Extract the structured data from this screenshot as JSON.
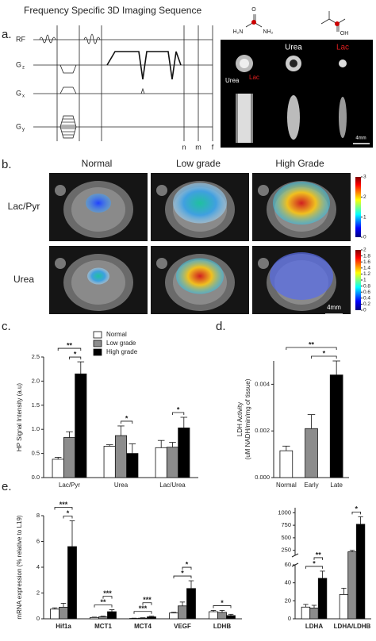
{
  "panel_a": {
    "label": "a.",
    "title": "Frequency Specific 3D Imaging Sequence",
    "rf": "RF",
    "gradients": [
      {
        "letter": "G",
        "sub": "z"
      },
      {
        "letter": "G",
        "sub": "x"
      },
      {
        "letter": "G",
        "sub": "y"
      }
    ],
    "time_marks": [
      "n",
      "m",
      "f"
    ],
    "molecules": [
      "H₂N",
      "NH₂",
      "O",
      "OH"
    ],
    "image_columns": [
      "Urea",
      "Lac"
    ],
    "phantom_labels": [
      "Urea",
      "Lac"
    ],
    "scale": "4mm"
  },
  "panel_b": {
    "label": "b.",
    "columns": [
      "Normal",
      "Low grade",
      "High Grade"
    ],
    "rows": [
      "Lac/Pyr",
      "Urea"
    ],
    "colorbars": [
      {
        "lim": [
          0,
          3
        ],
        "ticks": [
          0,
          1,
          2,
          3
        ]
      },
      {
        "lim": [
          0,
          2
        ],
        "ticks": [
          0,
          0.2,
          0.4,
          0.6,
          0.8,
          1,
          1.2,
          1.4,
          1.6,
          1.8,
          2
        ]
      }
    ],
    "scale": "4mm"
  },
  "chart_data": [
    {
      "label": "c.",
      "type": "bar",
      "ylabel": "HP Signal Intensity (a.u)",
      "categories": [
        "Lac/Pyr",
        "Urea",
        "Lac/Urea"
      ],
      "series": [
        {
          "name": "Normal",
          "color": "#ffffff",
          "values": [
            0.38,
            0.65,
            0.62
          ],
          "errors": [
            0.04,
            0.03,
            0.15
          ]
        },
        {
          "name": "Low grade",
          "color": "#8c8c8c",
          "values": [
            0.83,
            0.87,
            0.63
          ],
          "errors": [
            0.12,
            0.2,
            0.1
          ]
        },
        {
          "name": "High grade",
          "color": "#000000",
          "values": [
            2.15,
            0.5,
            1.03
          ],
          "errors": [
            0.25,
            0.2,
            0.22
          ]
        }
      ],
      "ylim": [
        0,
        2.5
      ],
      "yticks": [
        {
          "value": 0,
          "label": "0.0"
        },
        {
          "value": 0.5,
          "label": "0.5"
        },
        {
          "value": 1,
          "label": "1.0"
        },
        {
          "value": 1.5,
          "label": "1.5"
        },
        {
          "value": 2,
          "label": "2.0"
        },
        {
          "value": 2.5,
          "label": "2.5"
        }
      ],
      "legend": "upper right",
      "annotations": [
        {
          "label": "*",
          "category": 0,
          "from": 1,
          "to": 2
        },
        {
          "label": "**",
          "category": 0,
          "from": 0,
          "to": 2
        },
        {
          "label": "*",
          "category": 1,
          "from": 1,
          "to": 2
        },
        {
          "label": "*",
          "category": 2,
          "from": 1,
          "to": 2
        }
      ]
    },
    {
      "label": "d.",
      "type": "bar",
      "ylabel": [
        "LDH Activity",
        "(uM NADH/min/mg of tissue)"
      ],
      "categories": [
        "Normal",
        "Early",
        "Late"
      ],
      "values": [
        0.00115,
        0.0021,
        0.0044
      ],
      "errors": [
        0.0002,
        0.0006,
        0.0006
      ],
      "colors": [
        "#ffffff",
        "#8c8c8c",
        "#000000"
      ],
      "ylim": [
        0,
        0.005
      ],
      "yticks": [
        {
          "value": 0,
          "label": "0.000"
        },
        0.002,
        0.004
      ],
      "annotations": [
        {
          "label": "*",
          "from": 1,
          "to": 2
        },
        {
          "label": "**",
          "from": 0,
          "to": 2
        }
      ]
    },
    {
      "label": "e.",
      "type": "bar",
      "ylabel": "mRNA expression (% relative to L19)",
      "categories": [
        "Hif1a",
        "MCT1",
        "MCT4",
        "VEGF",
        "LDHB"
      ],
      "series": [
        {
          "color": "#ffffff",
          "values": [
            0.75,
            0.1,
            0.03,
            0.45,
            0.55
          ],
          "errors": [
            0.1,
            0.03,
            0.02,
            0.05,
            0.1
          ]
        },
        {
          "color": "#8c8c8c",
          "values": [
            0.9,
            0.15,
            0.05,
            1.0,
            0.5
          ],
          "errors": [
            0.3,
            0.05,
            0.03,
            0.3,
            0.15
          ]
        },
        {
          "color": "#000000",
          "values": [
            5.6,
            0.55,
            0.15,
            2.35,
            0.25
          ],
          "errors": [
            2.0,
            0.15,
            0.05,
            0.6,
            0.1
          ]
        }
      ],
      "ylim": [
        0,
        8
      ],
      "yticks": [
        0,
        2,
        4,
        6,
        8
      ],
      "annotations": [
        {
          "label": "*",
          "category": 0,
          "from": 1,
          "to": 2
        },
        {
          "label": "***",
          "category": 0,
          "from": 0,
          "to": 2
        },
        {
          "label": "**",
          "category": 1,
          "from": 0,
          "to": 2
        },
        {
          "label": "***",
          "category": 1,
          "from": 1,
          "to": 2
        },
        {
          "label": "***",
          "category": 2,
          "from": 0,
          "to": 2
        },
        {
          "label": "***",
          "category": 2,
          "from": 1,
          "to": 2
        },
        {
          "label": "*",
          "category": 3,
          "from": 0,
          "to": 2
        },
        {
          "label": "*",
          "category": 3,
          "from": 1,
          "to": 2
        },
        {
          "label": "*",
          "category": 4,
          "from": 0,
          "to": 2
        }
      ]
    },
    {
      "type": "bar",
      "categories": [
        "LDHA",
        "LDHA/LDHB"
      ],
      "series": [
        {
          "color": "#ffffff",
          "values": [
            13,
            27
          ],
          "errors": [
            3,
            7
          ]
        },
        {
          "color": "#8c8c8c",
          "values": [
            12,
            220
          ],
          "errors": [
            3,
            30
          ]
        },
        {
          "color": "#000000",
          "values": [
            45,
            770
          ],
          "errors": [
            8,
            150
          ]
        }
      ],
      "axis_break": true,
      "ylim": [
        0,
        60
      ],
      "yticks": [
        0,
        20,
        40,
        60
      ],
      "ylim_upper": [
        150,
        1100
      ],
      "yticks_upper": [
        250,
        500,
        750,
        1000
      ],
      "annotations": [
        {
          "label": "*",
          "category": 0,
          "from": 0,
          "to": 2
        },
        {
          "label": "**",
          "category": 0,
          "from": 1,
          "to": 2
        },
        {
          "label": "*",
          "category": 1,
          "from": 1,
          "to": 2
        }
      ]
    }
  ]
}
